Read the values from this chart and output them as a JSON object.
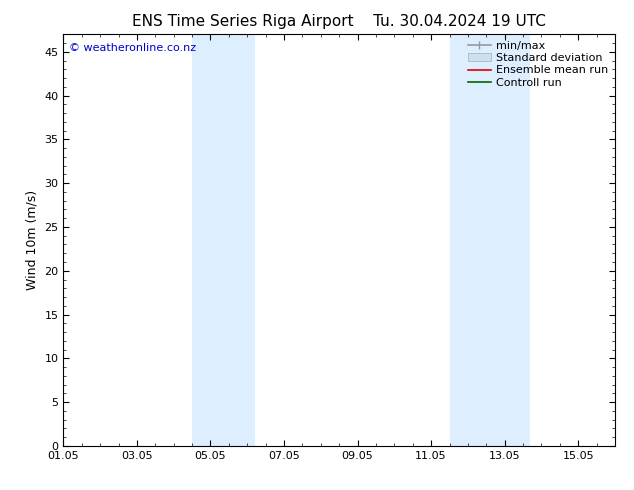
{
  "title_left": "ENS Time Series Riga Airport",
  "title_right": "Tu. 30.04.2024 19 UTC",
  "ylabel": "Wind 10m (m/s)",
  "ylim": [
    0,
    47
  ],
  "yticks": [
    0,
    5,
    10,
    15,
    20,
    25,
    30,
    35,
    40,
    45
  ],
  "xlim": [
    0,
    15
  ],
  "xtick_labels": [
    "01.05",
    "03.05",
    "05.05",
    "07.05",
    "09.05",
    "11.05",
    "13.05",
    "15.05"
  ],
  "xtick_positions": [
    0,
    2,
    4,
    6,
    8,
    10,
    12,
    14
  ],
  "shaded_bands": [
    {
      "x_start": 3.5,
      "x_end": 5.2,
      "color": "#ddeeff"
    },
    {
      "x_start": 10.5,
      "x_end": 11.5,
      "color": "#ddeeff"
    },
    {
      "x_start": 11.5,
      "x_end": 12.7,
      "color": "#ddeeff"
    }
  ],
  "watermark_text": "© weatheronline.co.nz",
  "watermark_color": "#0000cc",
  "background_color": "#ffffff",
  "plot_bg_color": "#ffffff",
  "legend_entries": [
    {
      "label": "min/max",
      "color": "#999999",
      "style": "minmax"
    },
    {
      "label": "Standard deviation",
      "color": "#cce0f0",
      "style": "band"
    },
    {
      "label": "Ensemble mean run",
      "color": "#dd0000",
      "style": "line"
    },
    {
      "label": "Controll run",
      "color": "#006600",
      "style": "line"
    }
  ],
  "title_fontsize": 11,
  "axis_label_fontsize": 9,
  "tick_fontsize": 8,
  "legend_fontsize": 8,
  "watermark_fontsize": 8
}
